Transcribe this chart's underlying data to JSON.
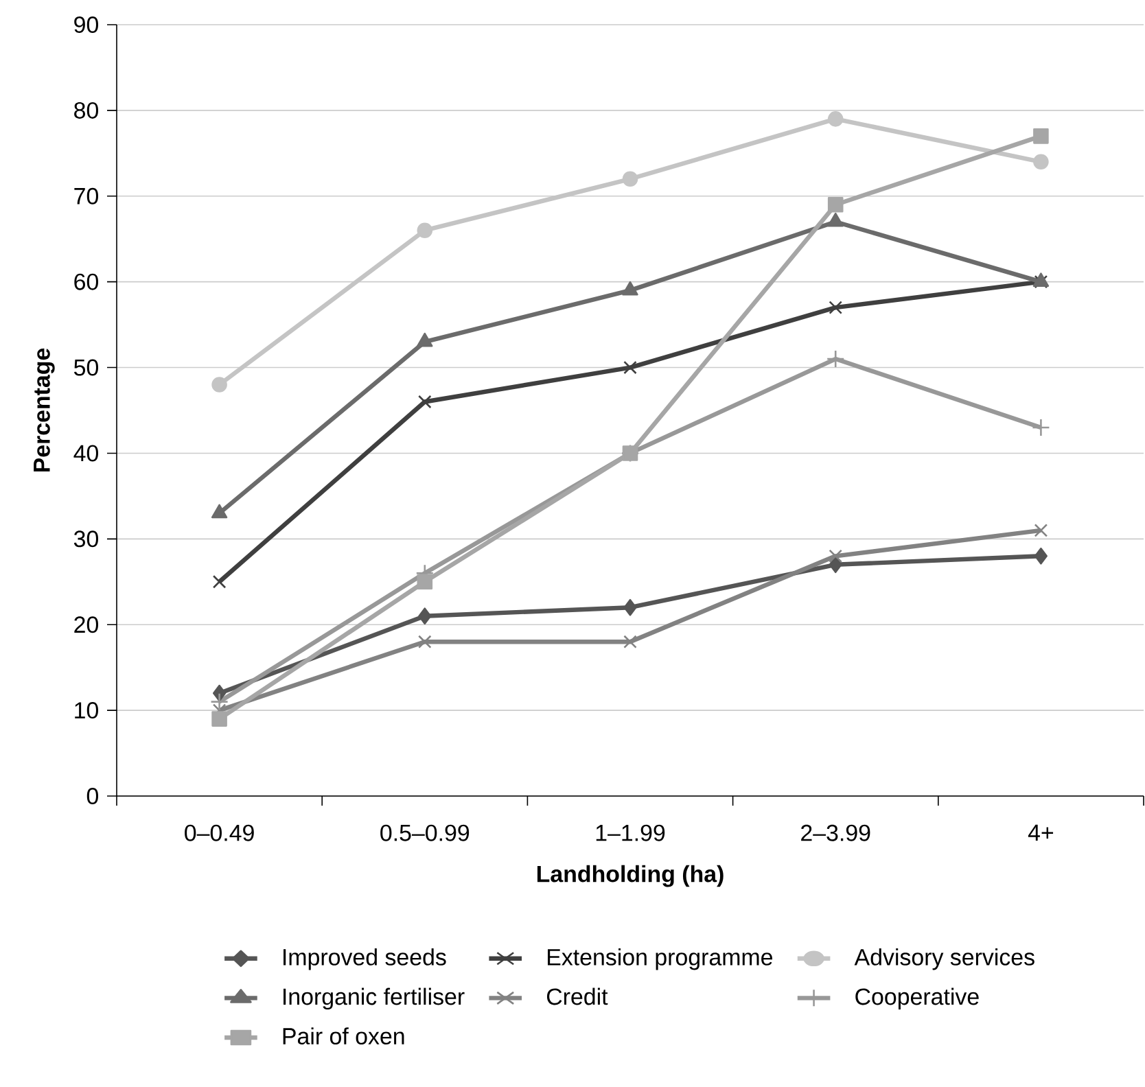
{
  "chart_data": {
    "type": "line",
    "xlabel": "Landholding (ha)",
    "ylabel": "Percentage",
    "categories": [
      "0–0.49",
      "0.5–0.99",
      "1–1.99",
      "2–3.99",
      "4+"
    ],
    "ylim": [
      0,
      90
    ],
    "yticks": [
      0,
      10,
      20,
      30,
      40,
      50,
      60,
      70,
      80,
      90
    ],
    "grid": "y",
    "legend": "bottom",
    "line_style": "solid",
    "series": [
      {
        "name": "Improved seeds",
        "color": "#555555",
        "marker": "diamond",
        "values": [
          12,
          21,
          22,
          27,
          28
        ]
      },
      {
        "name": "Extension programme",
        "color": "#3f3f3f",
        "marker": "cross",
        "values": [
          25,
          46,
          50,
          57,
          60
        ]
      },
      {
        "name": "Advisory services",
        "color": "#c4c4c4",
        "marker": "circle",
        "values": [
          48,
          66,
          72,
          79,
          74
        ]
      },
      {
        "name": "Inorganic fertiliser",
        "color": "#6b6b6b",
        "marker": "triangle",
        "values": [
          33,
          53,
          59,
          67,
          60
        ]
      },
      {
        "name": "Credit",
        "color": "#828282",
        "marker": "cross",
        "values": [
          10,
          18,
          18,
          28,
          31
        ]
      },
      {
        "name": "Cooperative",
        "color": "#989898",
        "marker": "plus",
        "values": [
          11,
          26,
          40,
          51,
          43
        ]
      },
      {
        "name": "Pair of oxen",
        "color": "#a6a6a6",
        "marker": "square",
        "values": [
          9,
          25,
          40,
          69,
          77
        ]
      }
    ]
  }
}
